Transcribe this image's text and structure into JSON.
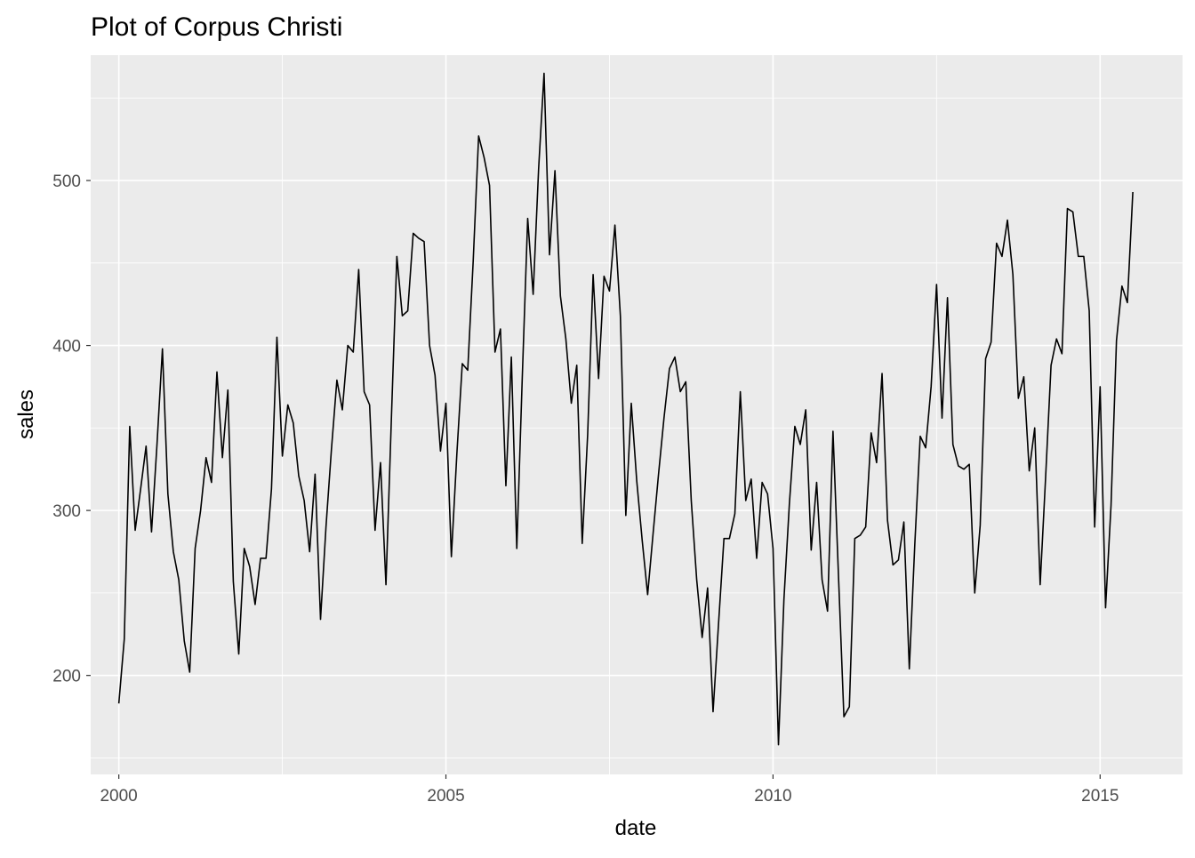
{
  "chart_data": {
    "type": "line",
    "title": "Plot of Corpus Christi",
    "xlabel": "date",
    "ylabel": "sales",
    "xlim": [
      1999.57,
      2016.26
    ],
    "ylim": [
      140,
      576
    ],
    "x_ticks": [
      2000,
      2005,
      2010,
      2015
    ],
    "x_tick_labels": [
      "2000",
      "2005",
      "2010",
      "2015"
    ],
    "y_ticks": [
      200,
      300,
      400,
      500
    ],
    "y_tick_labels": [
      "200",
      "300",
      "400",
      "500"
    ],
    "grid": true,
    "legend": "none",
    "colors": {
      "panel": "#EBEBEB",
      "grid": "#FFFFFF",
      "line": "#000000",
      "tick_text": "#4D4D4D"
    },
    "series": [
      {
        "x_start": "2000-01",
        "frequency": "monthly",
        "values": [
          183,
          222,
          351,
          288,
          313,
          339,
          287,
          340,
          398,
          310,
          275,
          258,
          221,
          202,
          277,
          300,
          332,
          317,
          384,
          332,
          373,
          257,
          213,
          277,
          266,
          243,
          271,
          271,
          313,
          405,
          333,
          364,
          353,
          321,
          306,
          275,
          322,
          234,
          290,
          337,
          379,
          361,
          400,
          396,
          446,
          372,
          364,
          288,
          329,
          255,
          356,
          454,
          418,
          421,
          468,
          465,
          463,
          400,
          382,
          336,
          365,
          272,
          334,
          389,
          385,
          451,
          527,
          514,
          497,
          396,
          410,
          315,
          393,
          277,
          380,
          477,
          431,
          507,
          565,
          455,
          506,
          430,
          404,
          365,
          388,
          280,
          346,
          443,
          380,
          442,
          433,
          473,
          418,
          297,
          365,
          318,
          282,
          249,
          286,
          322,
          356,
          386,
          393,
          372,
          378,
          306,
          258,
          223,
          253,
          178,
          231,
          283,
          283,
          298,
          372,
          306,
          319,
          271,
          317,
          310,
          277,
          158,
          246,
          304,
          351,
          340,
          361,
          276,
          317,
          258,
          239,
          348,
          261,
          175,
          181,
          283,
          285,
          290,
          347,
          329,
          383,
          294,
          267,
          270,
          293,
          204,
          279,
          345,
          338,
          375,
          437,
          356,
          429,
          340,
          327,
          325,
          328,
          250,
          291,
          392,
          402,
          462,
          454,
          476,
          443,
          368,
          381,
          324,
          350,
          255,
          320,
          388,
          404,
          395,
          483,
          481,
          454,
          454,
          421,
          290,
          375,
          241,
          303,
          403,
          436,
          426,
          493
        ]
      }
    ]
  }
}
